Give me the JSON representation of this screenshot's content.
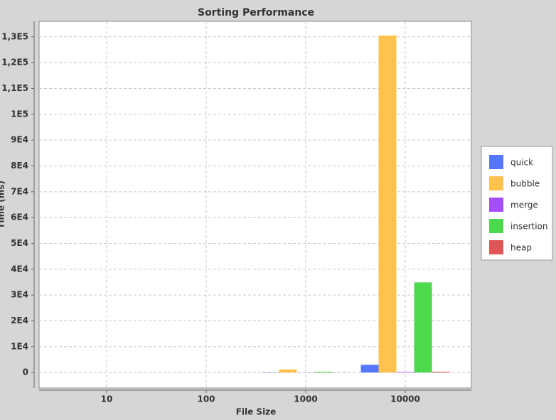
{
  "chart_data": {
    "type": "bar",
    "title": "Sorting Performance",
    "x_label": "File Size",
    "y_label": "Time (ms)",
    "categories": [
      "10",
      "100",
      "1000",
      "10000"
    ],
    "series": [
      {
        "name": "quick",
        "color": "#5577ff",
        "values": [
          0,
          0,
          100,
          3000
        ]
      },
      {
        "name": "bubble",
        "color": "#ffc34d",
        "values": [
          0,
          0,
          1200,
          130500
        ]
      },
      {
        "name": "merge",
        "color": "#a64dff",
        "values": [
          0,
          0,
          50,
          200
        ]
      },
      {
        "name": "insertion",
        "color": "#4cd94c",
        "values": [
          0,
          0,
          300,
          34900
        ]
      },
      {
        "name": "heap",
        "color": "#e05555",
        "values": [
          0,
          0,
          50,
          300
        ]
      }
    ],
    "ylim": [
      -6000,
      136000
    ],
    "yticks": [
      0,
      {
        "value": 10000,
        "label": "1E4"
      },
      {
        "value": 20000,
        "label": "2E4"
      },
      {
        "value": 30000,
        "label": "3E4"
      },
      {
        "value": 40000,
        "label": "4E4"
      },
      {
        "value": 50000,
        "label": "5E4"
      },
      {
        "value": 60000,
        "label": "6E4"
      },
      {
        "value": 70000,
        "label": "7E4"
      },
      {
        "value": 80000,
        "label": "8E4"
      },
      {
        "value": 90000,
        "label": "9E4"
      },
      {
        "value": 100000,
        "label": "1E5"
      },
      {
        "value": 110000,
        "label": "1,1E5"
      },
      {
        "value": 120000,
        "label": "1,2E5"
      },
      {
        "value": 130000,
        "label": "1,3E5"
      }
    ],
    "grid": true,
    "legend_position": "right"
  }
}
